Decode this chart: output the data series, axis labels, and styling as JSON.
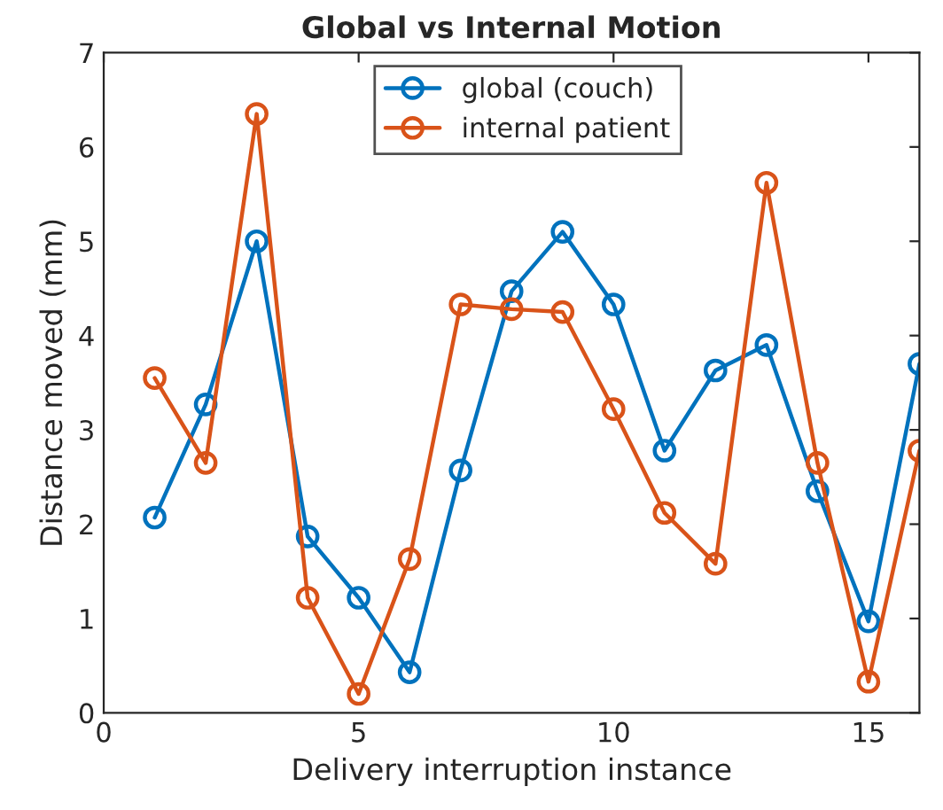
{
  "chart_data": {
    "type": "line",
    "title": "Global vs Internal Motion",
    "xlabel": "Delivery interruption instance",
    "ylabel": "Distance moved (mm)",
    "x": [
      1,
      2,
      3,
      4,
      5,
      6,
      7,
      8,
      9,
      10,
      11,
      12,
      13,
      14,
      15,
      16
    ],
    "series": [
      {
        "name": "global (couch)",
        "color": "#0072bd",
        "values": [
          2.07,
          3.27,
          5.0,
          1.87,
          1.22,
          0.43,
          2.57,
          4.47,
          5.1,
          4.33,
          2.78,
          3.63,
          3.9,
          2.35,
          0.97,
          3.7
        ]
      },
      {
        "name": "internal patient",
        "color": "#d95319",
        "values": [
          3.55,
          2.65,
          6.35,
          1.22,
          0.2,
          1.63,
          4.33,
          4.28,
          4.25,
          3.22,
          2.12,
          1.58,
          5.62,
          2.65,
          0.33,
          2.78
        ]
      }
    ],
    "xlim": [
      0,
      16
    ],
    "xticks": [
      0,
      5,
      10,
      15
    ],
    "ylim": [
      0,
      7
    ],
    "yticks": [
      0,
      1,
      2,
      3,
      4,
      5,
      6,
      7
    ],
    "grid": false,
    "legend": "top",
    "marker": "circle",
    "line_style": "solid"
  }
}
